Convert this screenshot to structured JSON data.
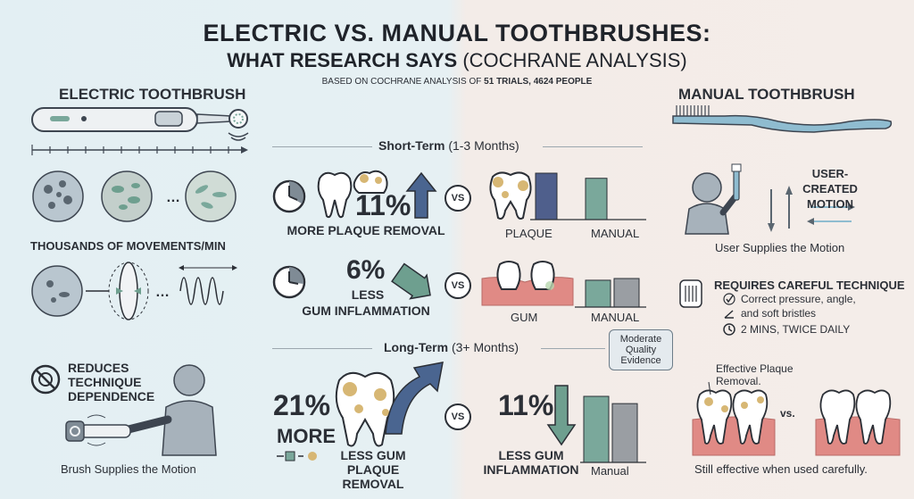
{
  "header": {
    "title": "ELECTRIC VS. MANUAL TOOTHBRUSHES:",
    "subtitle_bold": "WHAT RESEARCH SAYS",
    "subtitle_light": "(COCHRANE ANALYSIS)",
    "source_prefix": "BASED ON COCHRANE ANALYSIS OF",
    "source_bold": "51 TRIALS, 4624 PEOPLE"
  },
  "electric": {
    "heading": "ELECTRIC TOOTHBRUSH",
    "movements_label": "THOUSANDS OF MOVEMENTS/MIN",
    "technique_label": "REDUCES TECHNIQUE DEPENDENCE",
    "motion_caption": "Brush Supplies the Motion"
  },
  "manual": {
    "heading": "MANUAL TOOTHBRUSH",
    "motion_label": "USER-CREATED MOTION",
    "motion_caption": "User Supplies the Motion",
    "technique_heading": "REQUIRES CAREFUL TECHNIQUE",
    "technique_items": [
      "Correct pressure, angle,",
      "and soft bristles",
      "2 MINS, TWICE DAILY"
    ],
    "plaque_label": "Effective Plaque Removal.",
    "vs_small": "vs.",
    "closing_caption": "Still effective when used carefully."
  },
  "short_term": {
    "label_bold": "Short-Term",
    "label_light": "(1-3 Months)",
    "plaque_pct": "11%",
    "plaque_caption": "MORE PLAQUE REMOVAL",
    "gum_pct": "6%",
    "gum_caption_1": "LESS",
    "gum_caption_2": "GUM INFLAMMATION",
    "plaque_axis": "PLAQUE",
    "gum_axis": "GUM",
    "manual_axis": "MANUAL"
  },
  "long_term": {
    "label_bold": "Long-Term",
    "label_light": "(3+ Months)",
    "evidence_badge": "Moderate Quality Evidence",
    "plaque_pct": "21%",
    "plaque_more": "MORE",
    "plaque_caption": "LESS GUM PLAQUE REMOVAL",
    "gum_pct": "11%",
    "gum_caption": "LESS GUM INFLAMMATION",
    "manual_axis": "Manual"
  },
  "vs_label": "VS",
  "colors": {
    "electric_bar": "#7aa89b",
    "manual_bar": "#9a9ea3",
    "plaque_bar": "#4f5f8c",
    "arrow_blue": "#4a6590",
    "arrow_green": "#6e9f8f",
    "gum": "#e08a85",
    "plaque_spot": "#d7b774"
  },
  "chart_data": [
    {
      "type": "bar",
      "categories": [
        "PLAQUE",
        "MANUAL"
      ],
      "values": [
        100,
        89
      ]
    },
    {
      "type": "bar",
      "categories": [
        "GUM",
        "MANUAL"
      ],
      "values": [
        94,
        100
      ]
    },
    {
      "type": "bar",
      "categories": [
        "Manual"
      ],
      "series": [
        {
          "values": [
            100
          ]
        },
        {
          "values": [
            89
          ]
        }
      ]
    }
  ]
}
